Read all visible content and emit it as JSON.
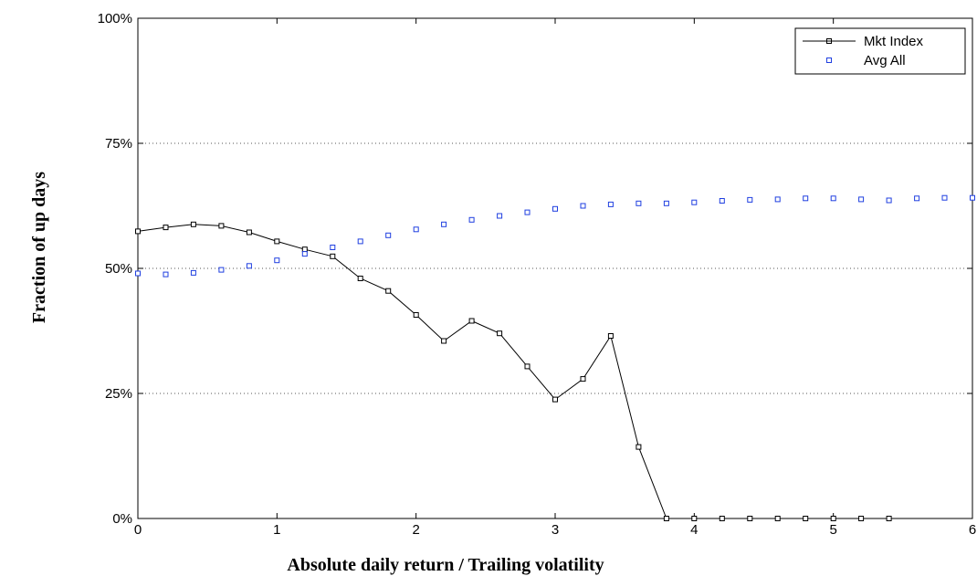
{
  "chart_data": {
    "type": "line",
    "title": "",
    "xlabel": "Absolute daily return / Trailing volatility",
    "ylabel": "Fraction of up days",
    "xlim": [
      0,
      6
    ],
    "ylim": [
      0,
      1
    ],
    "x_ticks": [
      "0",
      "1",
      "2",
      "3",
      "4",
      "5",
      "6"
    ],
    "y_ticks": [
      "0%",
      "25%",
      "50%",
      "75%",
      "100%"
    ],
    "grid": "horizontal dotted",
    "legend_position": "top-right",
    "series": [
      {
        "name": "Mkt Index",
        "style": "line-with-square-markers",
        "color": "#000000",
        "x": [
          0,
          0.2,
          0.4,
          0.6,
          0.8,
          1.0,
          1.2,
          1.4,
          1.6,
          1.8,
          2.0,
          2.2,
          2.4,
          2.6,
          2.8,
          3.0,
          3.2,
          3.4,
          3.6,
          3.8,
          4.0,
          4.2,
          4.4,
          4.6,
          4.8,
          5.0,
          5.2,
          5.4
        ],
        "y": [
          0.574,
          0.582,
          0.588,
          0.585,
          0.572,
          0.554,
          0.538,
          0.524,
          0.48,
          0.455,
          0.407,
          0.355,
          0.395,
          0.37,
          0.304,
          0.238,
          0.279,
          0.365,
          0.143,
          0.0,
          0.0,
          0.0,
          0.0,
          0.0,
          0.0,
          0.0,
          0.0,
          0.0
        ]
      },
      {
        "name": "Avg All",
        "style": "square-markers-only",
        "color": "#1f3fe0",
        "x": [
          0,
          0.2,
          0.4,
          0.6,
          0.8,
          1.0,
          1.2,
          1.4,
          1.6,
          1.8,
          2.0,
          2.2,
          2.4,
          2.6,
          2.8,
          3.0,
          3.2,
          3.4,
          3.6,
          3.8,
          4.0,
          4.2,
          4.4,
          4.6,
          4.8,
          5.0,
          5.2,
          5.4,
          5.6,
          5.8,
          6.0
        ],
        "y": [
          0.49,
          0.488,
          0.491,
          0.497,
          0.505,
          0.516,
          0.529,
          0.542,
          0.554,
          0.566,
          0.578,
          0.588,
          0.597,
          0.605,
          0.612,
          0.619,
          0.625,
          0.628,
          0.63,
          0.63,
          0.632,
          0.635,
          0.637,
          0.638,
          0.64,
          0.64,
          0.638,
          0.636,
          0.64,
          0.641,
          0.641
        ]
      }
    ]
  }
}
